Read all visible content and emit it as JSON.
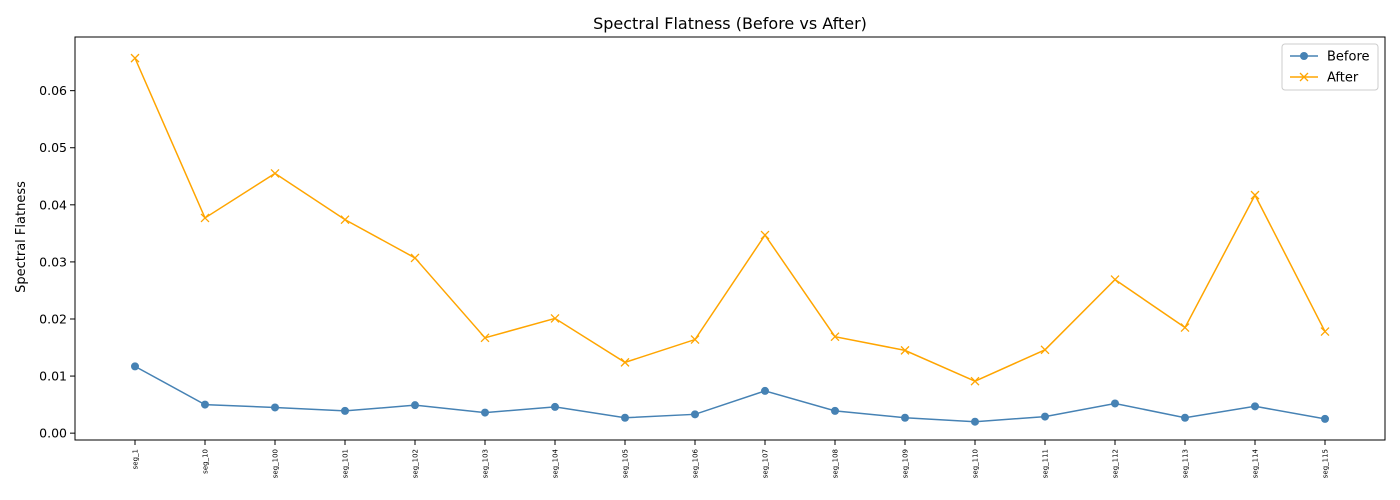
{
  "chart_data": {
    "type": "line",
    "title": "Spectral Flatness (Before vs After)",
    "xlabel": "",
    "ylabel": "Spectral Flatness",
    "categories": [
      "seg_1",
      "seg_10",
      "seg_100",
      "seg_101",
      "seg_102",
      "seg_103",
      "seg_104",
      "seg_105",
      "seg_106",
      "seg_107",
      "seg_108",
      "seg_109",
      "seg_110",
      "seg_111",
      "seg_112",
      "seg_113",
      "seg_114",
      "seg_115"
    ],
    "ylim": [
      -0.0012,
      0.0694
    ],
    "yticks": [
      "0.00",
      "0.01",
      "0.02",
      "0.03",
      "0.04",
      "0.05",
      "0.06"
    ],
    "grid": false,
    "legend_position": "top-right",
    "series": [
      {
        "name": "Before",
        "color": "#4682b4",
        "marker": "circle",
        "values": [
          0.0117,
          0.005,
          0.0045,
          0.0039,
          0.0049,
          0.0036,
          0.0046,
          0.0027,
          0.0033,
          0.0074,
          0.0039,
          0.0027,
          0.002,
          0.0029,
          0.0052,
          0.0027,
          0.0047,
          0.0025
        ]
      },
      {
        "name": "After",
        "color": "#ffa500",
        "marker": "x",
        "values": [
          0.0657,
          0.0377,
          0.0455,
          0.0374,
          0.0307,
          0.0167,
          0.0201,
          0.0124,
          0.0164,
          0.0347,
          0.0169,
          0.0145,
          0.0091,
          0.0146,
          0.0269,
          0.0185,
          0.0417,
          0.0178
        ]
      }
    ]
  }
}
